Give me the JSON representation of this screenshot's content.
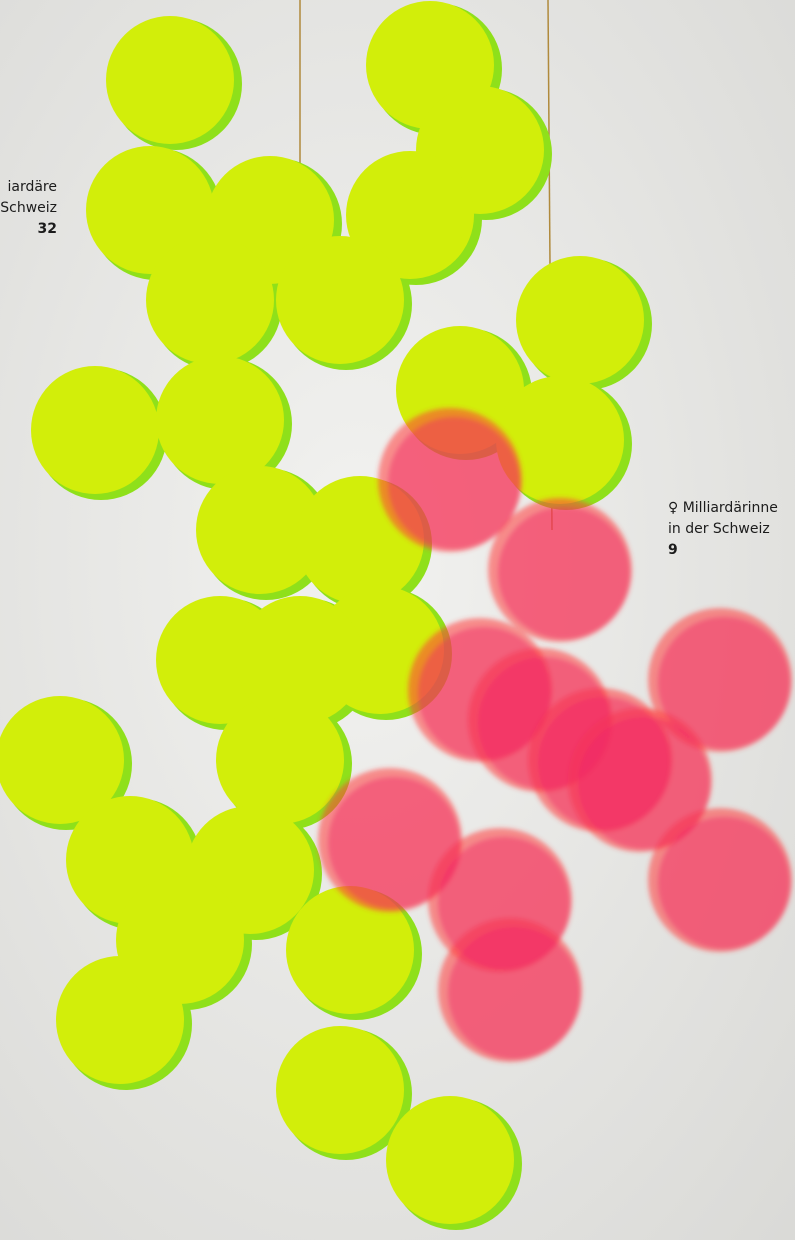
{
  "labels": [
    {
      "lines": [
        "iardäre",
        "Schweiz",
        "32"
      ]
    },
    {
      "lines": [
        "♀ Milliardärinne",
        "in der Schweiz",
        "9"
      ]
    }
  ]
}
